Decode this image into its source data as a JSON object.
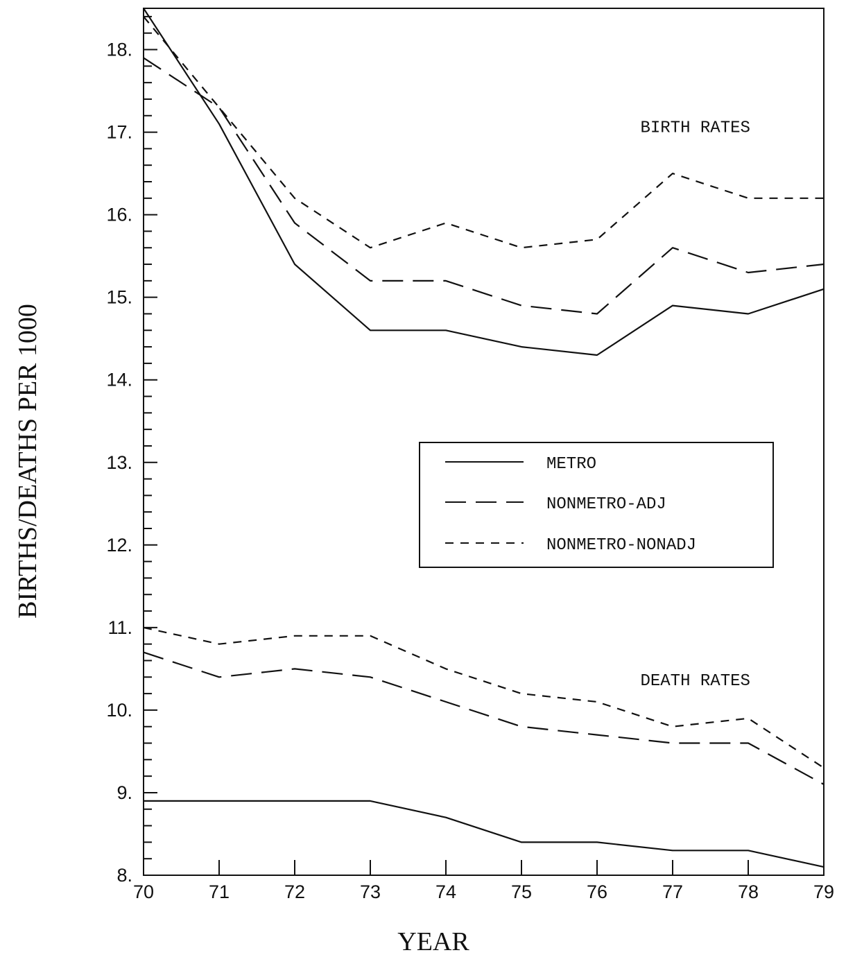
{
  "chart_data": {
    "type": "line",
    "xlabel": "YEAR",
    "ylabel": "BIRTHS/DEATHS PER 1000",
    "xlim": [
      70,
      79
    ],
    "ylim": [
      8,
      18.5
    ],
    "x": [
      70,
      71,
      72,
      73,
      74,
      75,
      76,
      77,
      78,
      79
    ],
    "x_tick_labels": [
      "70",
      "71",
      "72",
      "73",
      "74",
      "75",
      "76",
      "77",
      "78",
      "79"
    ],
    "y_ticks": [
      8,
      9,
      10,
      11,
      12,
      13,
      14,
      15,
      16,
      17,
      18
    ],
    "y_tick_labels": [
      "8.",
      "9.",
      "10.",
      "11.",
      "12.",
      "13.",
      "14.",
      "15.",
      "16.",
      "17.",
      "18."
    ],
    "grid": false,
    "legend": {
      "placement": "center-right",
      "entries": [
        {
          "label": "METRO",
          "style": "solid"
        },
        {
          "label": "NONMETRO-ADJ",
          "style": "long-dash"
        },
        {
          "label": "NONMETRO-NONADJ",
          "style": "short-dash"
        }
      ]
    },
    "annotations": [
      {
        "text": "BIRTH RATES",
        "x": 77.3,
        "y": 17.0
      },
      {
        "text": "DEATH RATES",
        "x": 77.3,
        "y": 10.3
      }
    ],
    "series": [
      {
        "name": "METRO",
        "group": "birth",
        "style": "solid",
        "values": [
          18.5,
          17.1,
          15.4,
          14.6,
          14.6,
          14.4,
          14.3,
          14.9,
          14.8,
          15.1
        ]
      },
      {
        "name": "NONMETRO-ADJ",
        "group": "birth",
        "style": "long-dash",
        "values": [
          17.9,
          17.3,
          15.9,
          15.2,
          15.2,
          14.9,
          14.8,
          15.6,
          15.3,
          15.4
        ]
      },
      {
        "name": "NONMETRO-NONADJ",
        "group": "birth",
        "style": "short-dash",
        "values": [
          18.4,
          17.3,
          16.2,
          15.6,
          15.9,
          15.6,
          15.7,
          16.5,
          16.2,
          16.2
        ]
      },
      {
        "name": "METRO",
        "group": "death",
        "style": "solid",
        "values": [
          8.9,
          8.9,
          8.9,
          8.9,
          8.7,
          8.4,
          8.4,
          8.3,
          8.3,
          8.1
        ]
      },
      {
        "name": "NONMETRO-ADJ",
        "group": "death",
        "style": "long-dash",
        "values": [
          10.7,
          10.4,
          10.5,
          10.4,
          10.1,
          9.8,
          9.7,
          9.6,
          9.6,
          9.1
        ]
      },
      {
        "name": "NONMETRO-NONADJ",
        "group": "death",
        "style": "short-dash",
        "values": [
          11.0,
          10.8,
          10.9,
          10.9,
          10.5,
          10.2,
          10.1,
          9.8,
          9.9,
          9.3
        ]
      }
    ]
  }
}
